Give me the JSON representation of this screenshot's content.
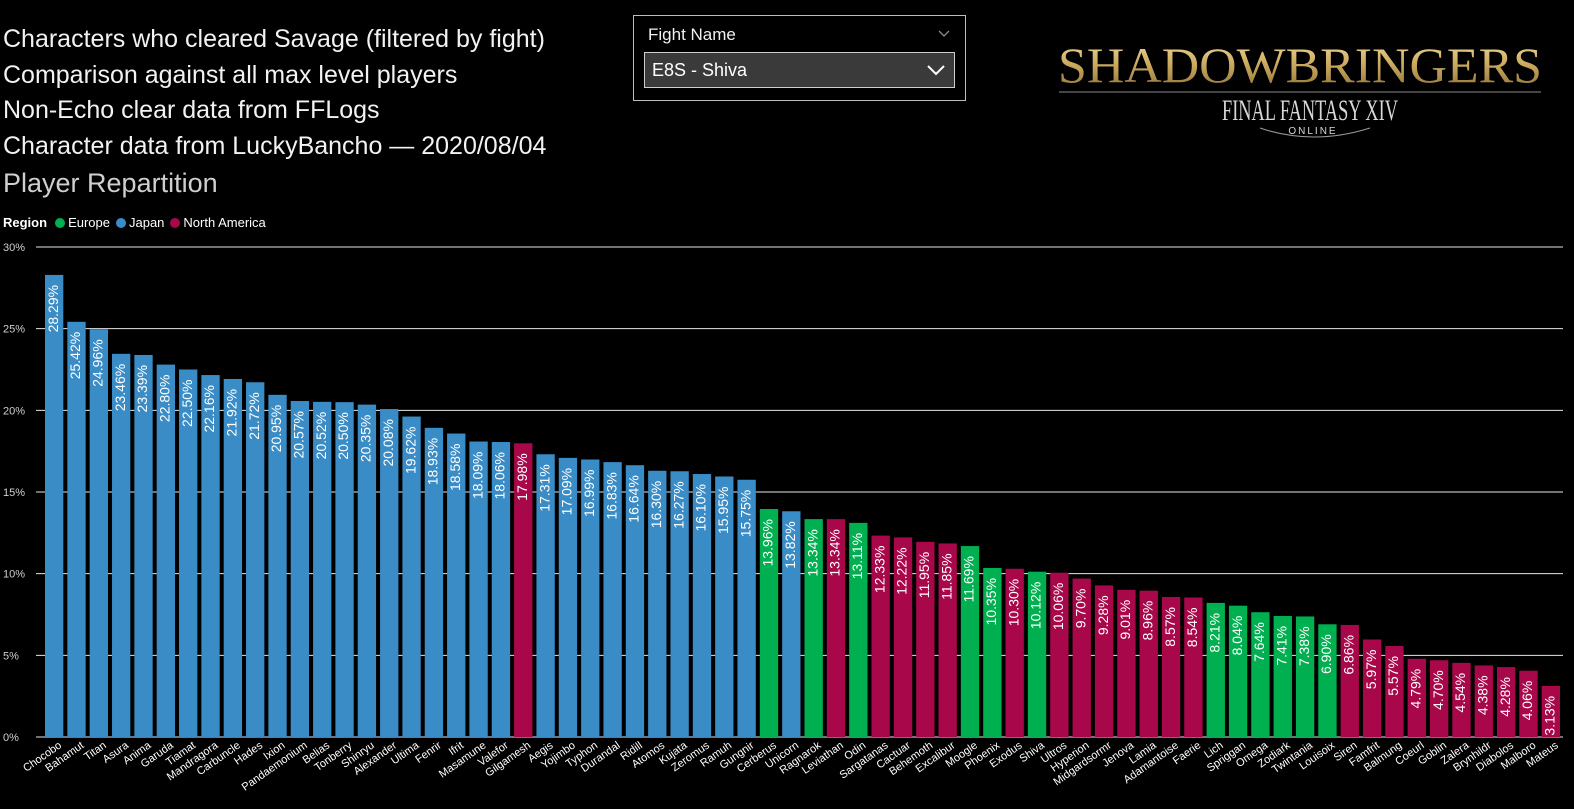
{
  "description": {
    "lines": [
      "Characters who cleared Savage (filtered by fight)",
      "Comparison against all max level players",
      "Non-Echo clear data from FFLogs",
      "Character data from LuckyBancho — 2020/08/04"
    ]
  },
  "section_title": "Player Repartition",
  "slicer": {
    "header": "Fight Name",
    "selected_value": "E8S - Shiva"
  },
  "logo": {
    "title": "SHADOWBRINGERS",
    "subtitle": "FINAL FANTASY XIV",
    "tagline": "ONLINE"
  },
  "colors": {
    "Europe": "#00b050",
    "Japan": "#3a8cc6",
    "North America": "#a8084a"
  },
  "chart_data": {
    "type": "bar",
    "title": "Player Repartition",
    "xlabel": "",
    "ylabel": "",
    "ylim": [
      0,
      30
    ],
    "y_ticks": [
      "0%",
      "5%",
      "10%",
      "15%",
      "20%",
      "25%",
      "30%"
    ],
    "legend": {
      "title": "Region",
      "entries": [
        "Europe",
        "Japan",
        "North America"
      ],
      "placement": "top-left"
    },
    "categories": [
      "Chocobo",
      "Bahamut",
      "Titan",
      "Asura",
      "Anima",
      "Garuda",
      "Tiamat",
      "Mandragora",
      "Carbuncle",
      "Hades",
      "Ixion",
      "Pandaemonium",
      "Belias",
      "Tonberry",
      "Shinryu",
      "Alexander",
      "Ultima",
      "Fenrir",
      "Ifrit",
      "Masamune",
      "Valefor",
      "Gilgamesh",
      "Aegis",
      "Yojimbo",
      "Typhon",
      "Durandal",
      "Ridill",
      "Atomos",
      "Kujata",
      "Zeromus",
      "Ramuh",
      "Gungnir",
      "Cerberus",
      "Unicorn",
      "Ragnarok",
      "Leviathan",
      "Odin",
      "Sargatanas",
      "Cactuar",
      "Behemoth",
      "Excalibur",
      "Moogle",
      "Phoenix",
      "Exodus",
      "Shiva",
      "Ultros",
      "Hyperion",
      "Midgardsormr",
      "Jenova",
      "Lamia",
      "Adamantoise",
      "Faerie",
      "Lich",
      "Spriggan",
      "Omega",
      "Zodiark",
      "Twintania",
      "Louisoix",
      "Siren",
      "Famfrit",
      "Balmung",
      "Coeurl",
      "Goblin",
      "Zalera",
      "Brynhildr",
      "Diabolos",
      "Malboro",
      "Mateus"
    ],
    "values": [
      28.29,
      25.42,
      24.96,
      23.46,
      23.39,
      22.8,
      22.5,
      22.16,
      21.92,
      21.72,
      20.95,
      20.57,
      20.52,
      20.5,
      20.35,
      20.08,
      19.62,
      18.93,
      18.58,
      18.09,
      18.06,
      17.98,
      17.31,
      17.09,
      16.99,
      16.83,
      16.64,
      16.3,
      16.27,
      16.1,
      15.95,
      15.75,
      13.96,
      13.82,
      13.34,
      13.34,
      13.11,
      12.33,
      12.22,
      11.95,
      11.85,
      11.69,
      10.35,
      10.3,
      10.12,
      10.06,
      9.7,
      9.28,
      9.01,
      8.96,
      8.57,
      8.54,
      8.21,
      8.04,
      7.64,
      7.41,
      7.38,
      6.9,
      6.86,
      5.97,
      5.57,
      4.79,
      4.7,
      4.54,
      4.38,
      4.28,
      4.06,
      3.13
    ],
    "data_labels": [
      "28.29%",
      "25.42%",
      "24.96%",
      "23.46%",
      "23.39%",
      "22.80%",
      "22.50%",
      "22.16%",
      "21.92%",
      "21.72%",
      "20.95%",
      "20.57%",
      "20.52%",
      "20.50%",
      "20.35%",
      "20.08%",
      "19.62%",
      "18.93%",
      "18.58%",
      "18.09%",
      "18.06%",
      "17.98%",
      "17.31%",
      "17.09%",
      "16.99%",
      "16.83%",
      "16.64%",
      "16.30%",
      "16.27%",
      "16.10%",
      "15.95%",
      "15.75%",
      "13.96%",
      "13.82%",
      "13.34%",
      "13.34%",
      "13.11%",
      "12.33%",
      "12.22%",
      "11.95%",
      "11.85%",
      "11.69%",
      "10.35%",
      "10.30%",
      "10.12%",
      "10.06%",
      "9.70%",
      "9.28%",
      "9.01%",
      "8.96%",
      "8.57%",
      "8.54%",
      "8.21%",
      "8.04%",
      "7.64%",
      "7.41%",
      "7.38%",
      "6.90%",
      "6.86%",
      "5.97%",
      "5.57%",
      "4.79%",
      "4.70%",
      "4.54%",
      "4.38%",
      "4.28%",
      "4.06%",
      "3.13%"
    ],
    "regions": [
      "Japan",
      "Japan",
      "Japan",
      "Japan",
      "Japan",
      "Japan",
      "Japan",
      "Japan",
      "Japan",
      "Japan",
      "Japan",
      "Japan",
      "Japan",
      "Japan",
      "Japan",
      "Japan",
      "Japan",
      "Japan",
      "Japan",
      "Japan",
      "Japan",
      "North America",
      "Japan",
      "Japan",
      "Japan",
      "Japan",
      "Japan",
      "Japan",
      "Japan",
      "Japan",
      "Japan",
      "Japan",
      "Europe",
      "Japan",
      "Europe",
      "North America",
      "Europe",
      "North America",
      "North America",
      "North America",
      "North America",
      "Europe",
      "Europe",
      "North America",
      "Europe",
      "North America",
      "North America",
      "North America",
      "North America",
      "North America",
      "North America",
      "North America",
      "Europe",
      "Europe",
      "Europe",
      "Europe",
      "Europe",
      "Europe",
      "North America",
      "North America",
      "North America",
      "North America",
      "North America",
      "North America",
      "North America",
      "North America",
      "North America",
      "North America"
    ]
  }
}
